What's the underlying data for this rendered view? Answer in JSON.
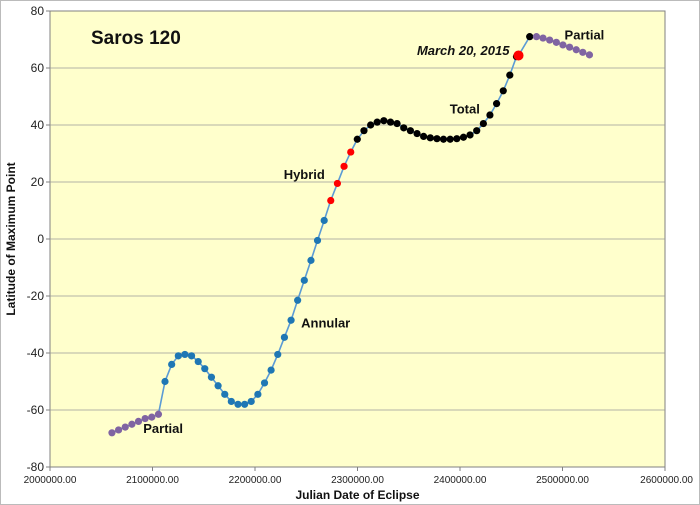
{
  "chart_data": {
    "type": "scatter",
    "title": "Saros 120",
    "xlabel": "Julian Date of Eclipse",
    "ylabel": "Latitude of Maximum Point",
    "xlim": [
      2000000,
      2600000
    ],
    "ylim": [
      -80,
      80
    ],
    "x_ticks": [
      "2000000.00",
      "2100000.00",
      "2200000.00",
      "2300000.00",
      "2400000.00",
      "2500000.00",
      "2600000.00"
    ],
    "y_ticks": [
      "80",
      "60",
      "40",
      "20",
      "0",
      "-20",
      "-40",
      "-60",
      "-80"
    ],
    "grid": "horizontal",
    "line_color": "#5b9bd5",
    "background": "#ffffcc",
    "series": [
      {
        "name": "Partial",
        "color": "#8064a2",
        "x": [
          2060440,
          2066900,
          2073400,
          2079900,
          2086300,
          2092800,
          2099300,
          2105800
        ],
        "y": [
          -68,
          -67,
          -66,
          -65,
          -64,
          -63,
          -62.5,
          -61.5
        ]
      },
      {
        "name": "Annular",
        "color": "#1f77b4",
        "x": [
          2112200,
          2118700,
          2125200,
          2131600,
          2138100,
          2144600,
          2151000,
          2157500,
          2164000,
          2170500,
          2176900,
          2183400,
          2189900,
          2196300,
          2202800,
          2209300,
          2215700,
          2222200,
          2228700,
          2235200,
          2241600,
          2248100,
          2254600,
          2261000,
          2267500
        ],
        "y": [
          -50,
          -44,
          -41,
          -40.5,
          -41,
          -43,
          -45.5,
          -48.5,
          -51.5,
          -54.5,
          -57,
          -58,
          -58,
          -57,
          -54.5,
          -50.5,
          -46,
          -40.5,
          -34.5,
          -28.5,
          -21.5,
          -14.5,
          -7.5,
          -0.5,
          6.5
        ]
      },
      {
        "name": "Hybrid",
        "color": "#ff0000",
        "x": [
          2273900,
          2280400,
          2286900,
          2293400
        ],
        "y": [
          13.5,
          19.5,
          25.5,
          30.5
        ]
      },
      {
        "name": "Total",
        "color": "#000000",
        "x": [
          2299800,
          2306300,
          2312800,
          2319200,
          2325700,
          2332200,
          2338600,
          2345100,
          2351600,
          2358100,
          2364500,
          2371000,
          2377500,
          2383900,
          2390400,
          2396900,
          2403400,
          2409800,
          2416300,
          2422800,
          2429200,
          2435700,
          2442200,
          2448600,
          2455100,
          2468000
        ],
        "y": [
          35,
          38,
          40,
          41,
          41.5,
          41,
          40.5,
          39,
          38,
          37,
          36,
          35.5,
          35.2,
          35,
          35,
          35.2,
          35.7,
          36.5,
          38,
          40.5,
          43.5,
          47.5,
          52,
          57.5,
          64,
          71
        ]
      },
      {
        "name": "March 20, 2015",
        "color": "#ff0000",
        "x": [
          2457101.5
        ],
        "y": [
          64.4
        ]
      },
      {
        "name": "Partial",
        "color": "#8064a2",
        "x": [
          2474600,
          2481000,
          2487500,
          2494000,
          2500400,
          2506900,
          2513400,
          2519800,
          2526300
        ],
        "y": [
          71,
          70.5,
          69.8,
          69,
          68.1,
          67.3,
          66.4,
          65.5,
          64.6
        ]
      }
    ],
    "annotations": [
      {
        "text": "Saros 120",
        "x": 2040000,
        "y": 68.5,
        "style": "title"
      },
      {
        "text": "Partial",
        "x": 2091000,
        "y": -68,
        "style": "bold"
      },
      {
        "text": "Annular",
        "x": 2245000,
        "y": -31,
        "style": "bold"
      },
      {
        "text": "Hybrid",
        "x": 2228000,
        "y": 21,
        "style": "bold"
      },
      {
        "text": "Total",
        "x": 2390000,
        "y": 44,
        "style": "bold"
      },
      {
        "text": "March 20, 2015",
        "x": 2358000,
        "y": 64.5,
        "style": "bold-italic"
      },
      {
        "text": "Partial",
        "x": 2502000,
        "y": 70,
        "style": "bold"
      }
    ]
  }
}
